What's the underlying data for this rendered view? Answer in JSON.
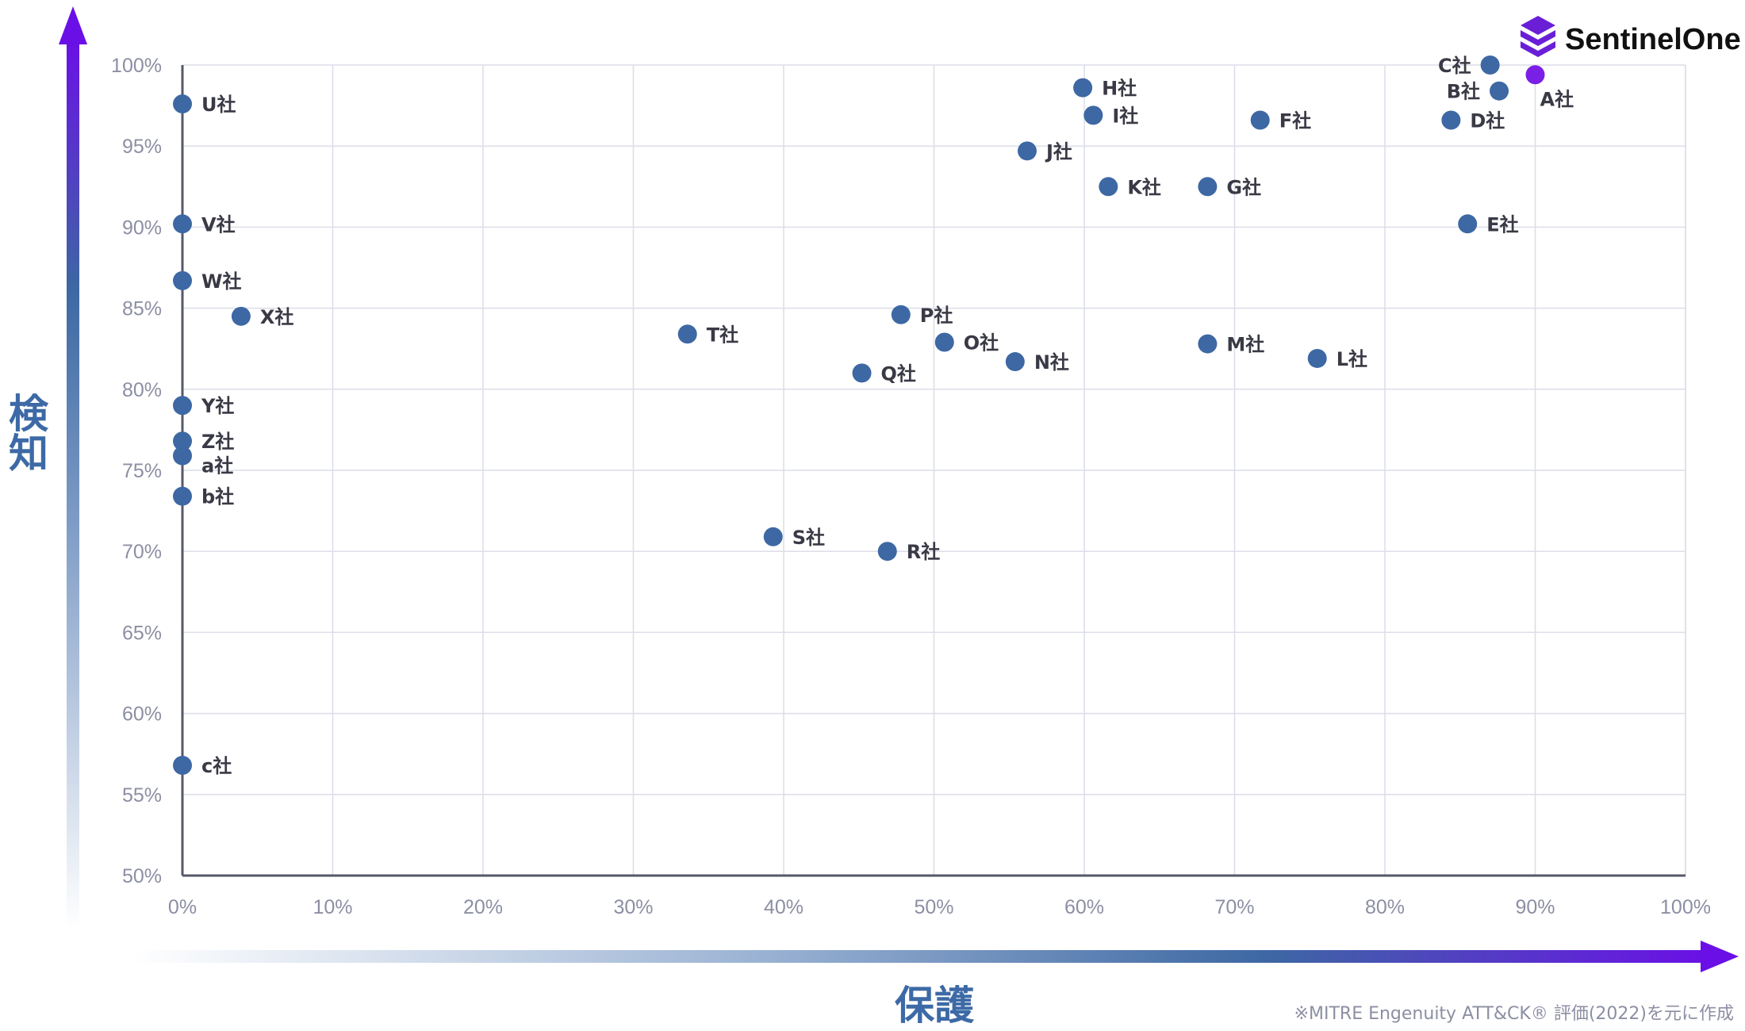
{
  "chart_data": {
    "type": "scatter",
    "xlabel": "保護",
    "ylabel": "検知",
    "xlim": [
      0,
      100
    ],
    "ylim": [
      50,
      100
    ],
    "x_ticks": [
      "0%",
      "10%",
      "20%",
      "30%",
      "40%",
      "50%",
      "60%",
      "70%",
      "80%",
      "90%",
      "100%"
    ],
    "y_ticks": [
      "50%",
      "55%",
      "60%",
      "65%",
      "70%",
      "75%",
      "80%",
      "85%",
      "90%",
      "95%",
      "100%"
    ],
    "grid": true,
    "highlight_color": "#7a1fe6",
    "point_color": "#3d68a3",
    "points": [
      {
        "label": "A社",
        "x": 90.0,
        "y": 99.4,
        "highlight": true
      },
      {
        "label": "B社",
        "x": 87.6,
        "y": 98.4
      },
      {
        "label": "C社",
        "x": 87.0,
        "y": 100.0
      },
      {
        "label": "D社",
        "x": 84.4,
        "y": 96.6
      },
      {
        "label": "E社",
        "x": 85.5,
        "y": 90.2
      },
      {
        "label": "F社",
        "x": 71.7,
        "y": 96.6
      },
      {
        "label": "G社",
        "x": 68.2,
        "y": 92.5
      },
      {
        "label": "H社",
        "x": 59.9,
        "y": 98.6
      },
      {
        "label": "I社",
        "x": 60.6,
        "y": 96.9
      },
      {
        "label": "J社",
        "x": 56.2,
        "y": 94.7
      },
      {
        "label": "K社",
        "x": 61.6,
        "y": 92.5
      },
      {
        "label": "L社",
        "x": 75.5,
        "y": 81.9
      },
      {
        "label": "M社",
        "x": 68.2,
        "y": 82.8
      },
      {
        "label": "N社",
        "x": 55.4,
        "y": 81.7
      },
      {
        "label": "O社",
        "x": 50.7,
        "y": 82.9
      },
      {
        "label": "P社",
        "x": 47.8,
        "y": 84.6
      },
      {
        "label": "Q社",
        "x": 45.2,
        "y": 81.0
      },
      {
        "label": "R社",
        "x": 46.9,
        "y": 70.0
      },
      {
        "label": "S社",
        "x": 39.3,
        "y": 70.9
      },
      {
        "label": "T社",
        "x": 33.6,
        "y": 83.4
      },
      {
        "label": "U社",
        "x": 0,
        "y": 97.6
      },
      {
        "label": "V社",
        "x": 0,
        "y": 90.2
      },
      {
        "label": "W社",
        "x": 0,
        "y": 86.7
      },
      {
        "label": "X社",
        "x": 3.9,
        "y": 84.5
      },
      {
        "label": "Y社",
        "x": 0,
        "y": 79.0
      },
      {
        "label": "Z社",
        "x": 0,
        "y": 76.8
      },
      {
        "label": "a社",
        "x": 0,
        "y": 75.9
      },
      {
        "label": "b社",
        "x": 0,
        "y": 73.4
      },
      {
        "label": "c社",
        "x": 0,
        "y": 56.8
      }
    ]
  },
  "brand": {
    "name": "SentinelOne",
    "icon": "sentinelone-logo-icon",
    "color": "#6a1fd6"
  },
  "footnote": "※MITRE Engenuity ATT&CK® 評価(2022)を元に作成"
}
